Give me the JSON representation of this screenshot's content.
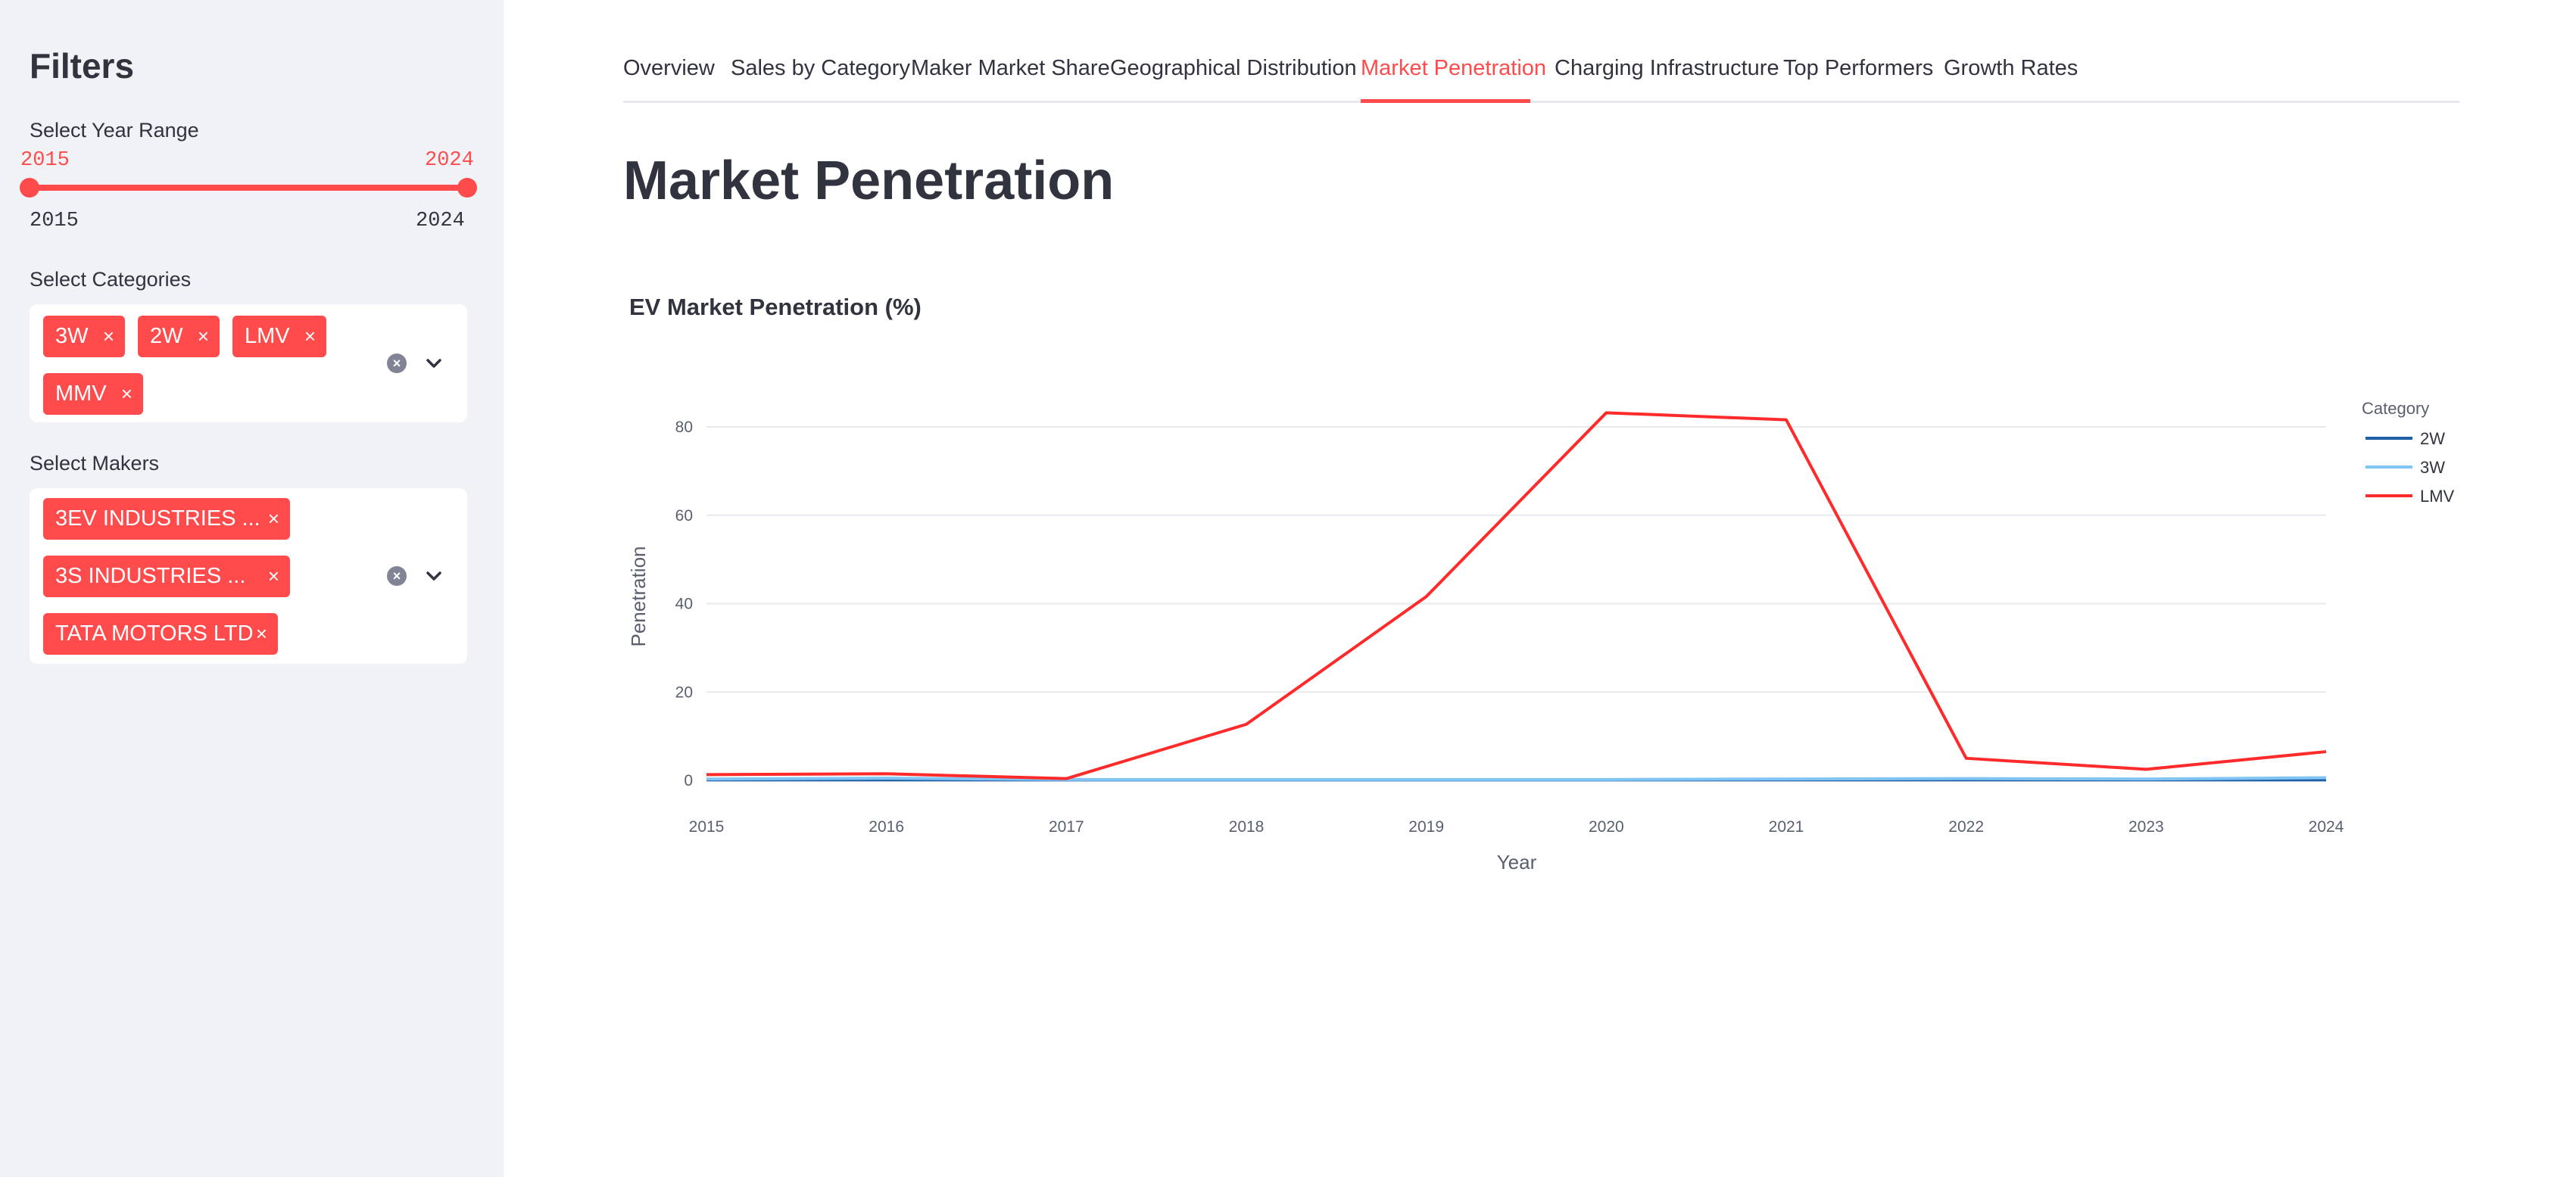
{
  "sidebar": {
    "title": "Filters",
    "year_range": {
      "label": "Select Year Range",
      "value_start": "2015",
      "value_end": "2024",
      "min_label": "2015",
      "max_label": "2024"
    },
    "categories": {
      "label": "Select Categories",
      "selected": [
        "3W",
        "2W",
        "LMV",
        "MMV"
      ]
    },
    "makers": {
      "label": "Select Makers",
      "selected": [
        "3EV INDUSTRIES ...",
        "3S INDUSTRIES ...",
        "TATA MOTORS LTD"
      ]
    },
    "remove_glyph": "×",
    "clear_glyph": "×"
  },
  "tabs": [
    {
      "label": "Overview"
    },
    {
      "label": "Sales by Category"
    },
    {
      "label": "Maker Market Share"
    },
    {
      "label": "Geographical Distribution"
    },
    {
      "label": "Market Penetration",
      "active": true
    },
    {
      "label": "Charging Infrastructure"
    },
    {
      "label": "Top Performers"
    },
    {
      "label": "Growth Rates"
    }
  ],
  "page_title": "Market Penetration",
  "colors": {
    "accent": "#ff4b4b",
    "sidebar_bg": "#f0f2f6",
    "series_2w": "#1f5fa6",
    "series_3w": "#7fc4f5",
    "series_lmv": "#ff2b2b"
  },
  "chart_data": {
    "type": "line",
    "title": "EV Market Penetration (%)",
    "xlabel": "Year",
    "ylabel": "Penetration",
    "legend_title": "Category",
    "legend_position": "top-right",
    "grid": true,
    "x": [
      2015,
      2016,
      2017,
      2018,
      2019,
      2020,
      2021,
      2022,
      2023,
      2024
    ],
    "x_ticks": [
      "2015",
      "2016",
      "2017",
      "2018",
      "2019",
      "2020",
      "2021",
      "2022",
      "2023",
      "2024"
    ],
    "y_ticks": [
      "0",
      "20",
      "40",
      "60",
      "80"
    ],
    "ylim": [
      0,
      80
    ],
    "series": [
      {
        "name": "2W",
        "color": "#1f5fa6",
        "values": [
          0.1,
          0.1,
          0.1,
          0.1,
          0.1,
          0.1,
          0.1,
          0.1,
          0.1,
          0.1
        ]
      },
      {
        "name": "3W",
        "color": "#7fc4f5",
        "values": [
          0.3,
          0.5,
          0.2,
          0.2,
          0.2,
          0.2,
          0.3,
          0.4,
          0.3,
          0.6
        ]
      },
      {
        "name": "LMV",
        "color": "#ff2b2b",
        "values": [
          1.3,
          1.5,
          0.4,
          12.7,
          41.6,
          83.2,
          81.6,
          5.0,
          2.5,
          6.5
        ]
      }
    ]
  }
}
